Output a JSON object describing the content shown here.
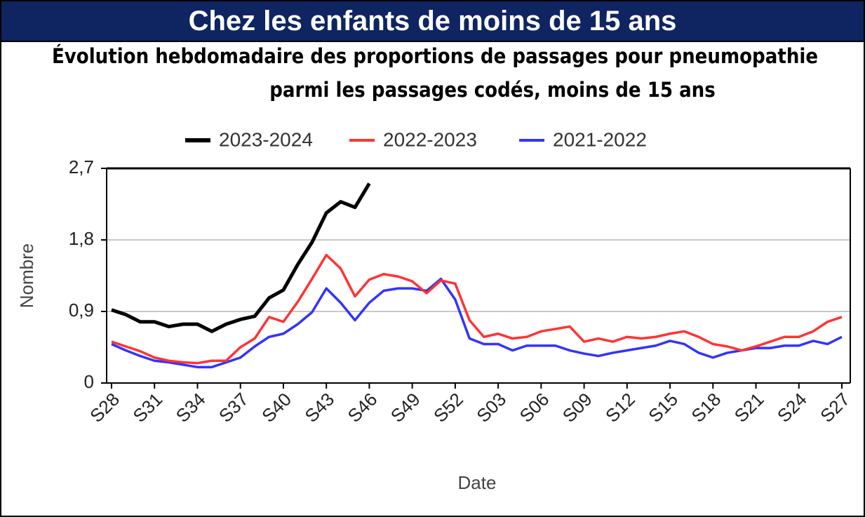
{
  "header": "Chez les enfants de moins de 15 ans",
  "chart_data": {
    "type": "line",
    "title": "Évolution hebdomadaire des proportions de passages pour pneumopathie",
    "subtitle": "parmi les passages codés, moins de 15 ans",
    "xlabel": "Date",
    "ylabel": "Nombre",
    "categories": [
      "S28",
      null,
      null,
      "S31",
      null,
      null,
      "S34",
      null,
      null,
      "S37",
      null,
      null,
      "S40",
      null,
      null,
      "S43",
      null,
      null,
      "S46",
      null,
      null,
      "S49",
      null,
      null,
      "S52",
      null,
      null,
      "S03",
      null,
      null,
      "S06",
      null,
      null,
      "S09",
      null,
      null,
      "S12",
      null,
      null,
      "S15",
      null,
      null,
      "S18",
      null,
      null,
      "S21",
      null,
      null,
      "S24",
      null,
      null,
      "S27"
    ],
    "ylim": [
      0,
      2.7
    ],
    "yticks": [
      0,
      {
        "value": 0.9,
        "label": "0,9"
      },
      {
        "value": 1.8,
        "label": "1,8"
      },
      {
        "value": 2.7,
        "label": "2,7"
      }
    ],
    "grid": true,
    "legend": "top",
    "series": [
      {
        "name": "2023-2024",
        "color": "#000000",
        "values": [
          0.92,
          0.86,
          0.77,
          0.77,
          0.71,
          0.74,
          0.74,
          0.65,
          0.74,
          0.8,
          0.84,
          1.07,
          1.17,
          1.49,
          1.77,
          2.14,
          2.28,
          2.21,
          2.51,
          null,
          null,
          null,
          null,
          null,
          null,
          null,
          null,
          null,
          null,
          null,
          null,
          null,
          null,
          null,
          null,
          null,
          null,
          null,
          null,
          null,
          null,
          null,
          null,
          null,
          null,
          null,
          null,
          null,
          null,
          null,
          null,
          null
        ]
      },
      {
        "name": "2022-2023",
        "color": "#ff3333",
        "values": [
          0.52,
          0.46,
          0.4,
          0.32,
          0.28,
          0.26,
          0.25,
          0.28,
          0.28,
          0.45,
          0.56,
          0.83,
          0.77,
          1.02,
          1.31,
          1.61,
          1.44,
          1.09,
          1.3,
          1.37,
          1.34,
          1.28,
          1.13,
          1.29,
          1.25,
          0.79,
          0.58,
          0.62,
          0.56,
          0.58,
          0.65,
          0.68,
          0.71,
          0.52,
          0.56,
          0.52,
          0.58,
          0.56,
          0.58,
          0.62,
          0.65,
          0.58,
          0.49,
          0.46,
          0.41,
          0.46,
          0.52,
          0.58,
          0.58,
          0.65,
          0.77,
          0.83
        ]
      },
      {
        "name": "2021-2022",
        "color": "#3333ff",
        "values": [
          0.49,
          0.41,
          0.34,
          0.28,
          0.26,
          0.23,
          0.2,
          0.2,
          0.26,
          0.32,
          0.46,
          0.58,
          0.62,
          0.74,
          0.89,
          1.19,
          1.01,
          0.79,
          1.01,
          1.16,
          1.19,
          1.19,
          1.16,
          1.31,
          1.05,
          0.56,
          0.49,
          0.49,
          0.41,
          0.47,
          0.47,
          0.47,
          0.41,
          0.37,
          0.34,
          0.38,
          0.41,
          0.44,
          0.47,
          0.53,
          0.49,
          0.38,
          0.32,
          0.38,
          0.41,
          0.44,
          0.44,
          0.47,
          0.47,
          0.53,
          0.49,
          0.58
        ]
      }
    ]
  }
}
